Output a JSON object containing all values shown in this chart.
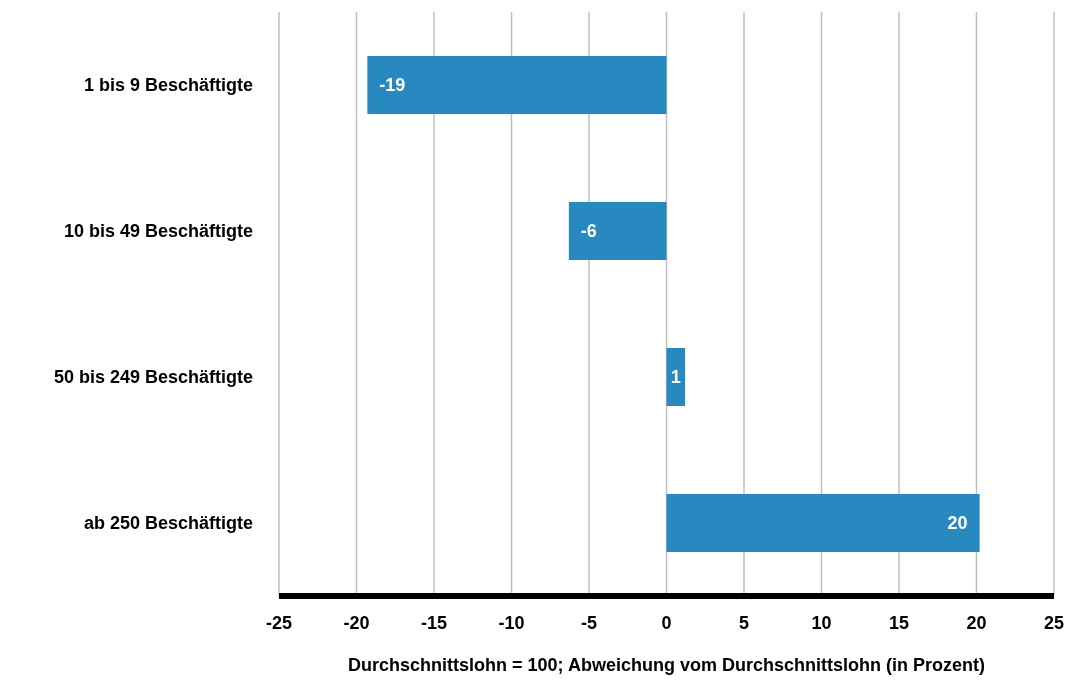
{
  "chart_data": {
    "type": "bar",
    "orientation": "horizontal",
    "categories": [
      "1 bis 9 Beschäftigte",
      "10 bis 49 Beschäftigte",
      "50 bis 249 Beschäftigte",
      "ab 250 Beschäftigte"
    ],
    "values": [
      -19.3,
      -6.3,
      1.2,
      20.2
    ],
    "value_labels": [
      "-19",
      "-6",
      "1",
      "20"
    ],
    "color": "#2889c0",
    "xlim": [
      -25,
      25
    ],
    "xticks": [
      -25,
      -20,
      -15,
      -10,
      -5,
      0,
      5,
      10,
      15,
      20,
      25
    ],
    "xlabel": "Durchschnittslohn = 100; Abweichung vom Durchschnittslohn (in Prozent)",
    "grid": "x",
    "legend": false
  }
}
